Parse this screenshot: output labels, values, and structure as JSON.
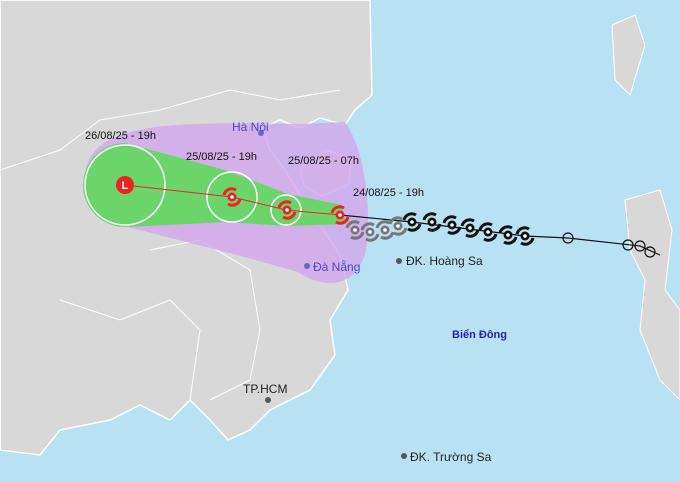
{
  "map": {
    "forecast_times": [
      "26/08/25 - 19h",
      "25/08/25 - 19h",
      "25/08/25 - 07h",
      "24/08/25 - 19h"
    ],
    "low_pressure_symbol": "L",
    "places": {
      "ha_noi": "Hà Nội",
      "da_nang": "Đà Nẵng",
      "hoang_sa": "ĐK. Hoàng Sa",
      "tp_hcm": "TP.HCM",
      "truong_sa": "ĐK. Trường Sa"
    },
    "sea_name": "Biển Đông"
  }
}
